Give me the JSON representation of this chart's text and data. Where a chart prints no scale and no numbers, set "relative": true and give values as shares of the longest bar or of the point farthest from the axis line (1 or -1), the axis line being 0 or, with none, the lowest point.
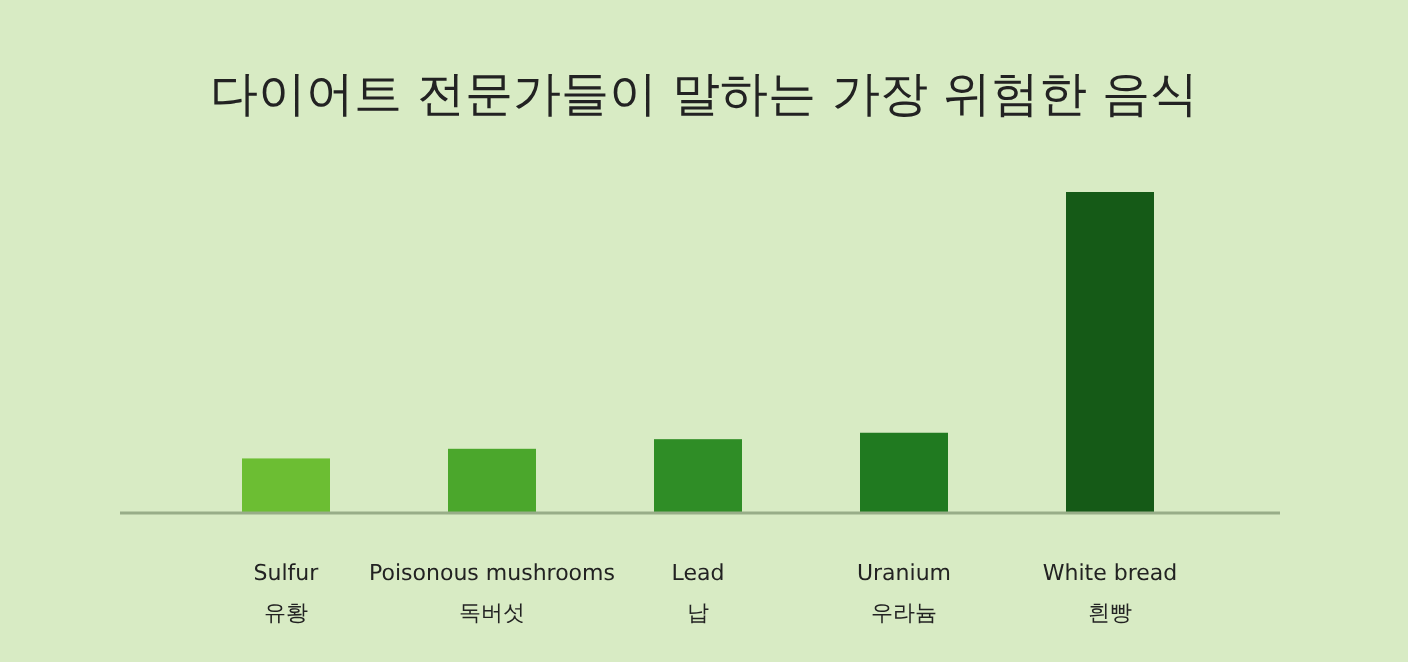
{
  "chart_data": {
    "type": "bar",
    "title": "다이어트 전문가들이 말하는 가장 위험한 음식",
    "relative": true,
    "categories": [
      "Sulfur\n유황",
      "Poisonous mushrooms\n독버섯",
      "Lead\n납",
      "Uranium\n우라늄",
      "White bread\n흰빵"
    ],
    "values": [
      0.17,
      0.2,
      0.23,
      0.25,
      1
    ],
    "colors": [
      "#6cbe33",
      "#4ba72c",
      "#2f8d26",
      "#207a20",
      "#155a17"
    ]
  }
}
